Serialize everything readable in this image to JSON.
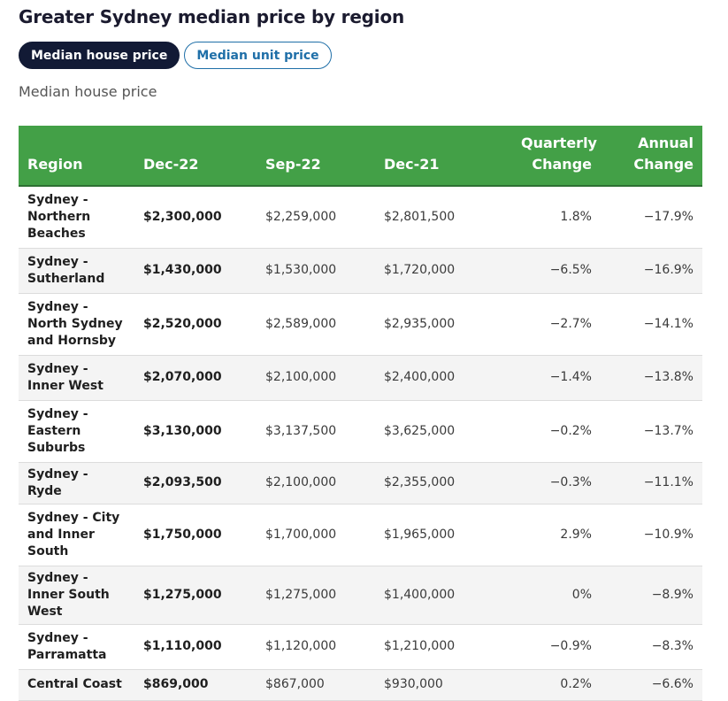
{
  "title": "Greater Sydney median price by region",
  "toggles": [
    {
      "label": "Median house price",
      "active": true
    },
    {
      "label": "Median unit price",
      "active": false
    }
  ],
  "subtitle": "Median house price",
  "colors": {
    "header_bg": "#43a047",
    "active_pill": "#121a35",
    "inactive_pill_text": "#1f6fa8"
  },
  "chart_data": {
    "type": "table",
    "columns": [
      "Region",
      "Dec-22",
      "Sep-22",
      "Dec-21",
      "Quarterly Change",
      "Annual Change"
    ],
    "rows": [
      [
        "Sydney - Northern Beaches",
        "$2,300,000",
        "$2,259,000",
        "$2,801,500",
        "1.8%",
        "−17.9%"
      ],
      [
        "Sydney - Sutherland",
        "$1,430,000",
        "$1,530,000",
        "$1,720,000",
        "−6.5%",
        "−16.9%"
      ],
      [
        "Sydney - North Sydney and Hornsby",
        "$2,520,000",
        "$2,589,000",
        "$2,935,000",
        "−2.7%",
        "−14.1%"
      ],
      [
        "Sydney - Inner West",
        "$2,070,000",
        "$2,100,000",
        "$2,400,000",
        "−1.4%",
        "−13.8%"
      ],
      [
        "Sydney - Eastern Suburbs",
        "$3,130,000",
        "$3,137,500",
        "$3,625,000",
        "−0.2%",
        "−13.7%"
      ],
      [
        "Sydney - Ryde",
        "$2,093,500",
        "$2,100,000",
        "$2,355,000",
        "−0.3%",
        "−11.1%"
      ],
      [
        "Sydney - City and Inner South",
        "$1,750,000",
        "$1,700,000",
        "$1,965,000",
        "2.9%",
        "−10.9%"
      ],
      [
        "Sydney - Inner South West",
        "$1,275,000",
        "$1,275,000",
        "$1,400,000",
        "0%",
        "−8.9%"
      ],
      [
        "Sydney - Parramatta",
        "$1,110,000",
        "$1,120,000",
        "$1,210,000",
        "−0.9%",
        "−8.3%"
      ],
      [
        "Central Coast",
        "$869,000",
        "$867,000",
        "$930,000",
        "0.2%",
        "−6.6%"
      ]
    ]
  }
}
